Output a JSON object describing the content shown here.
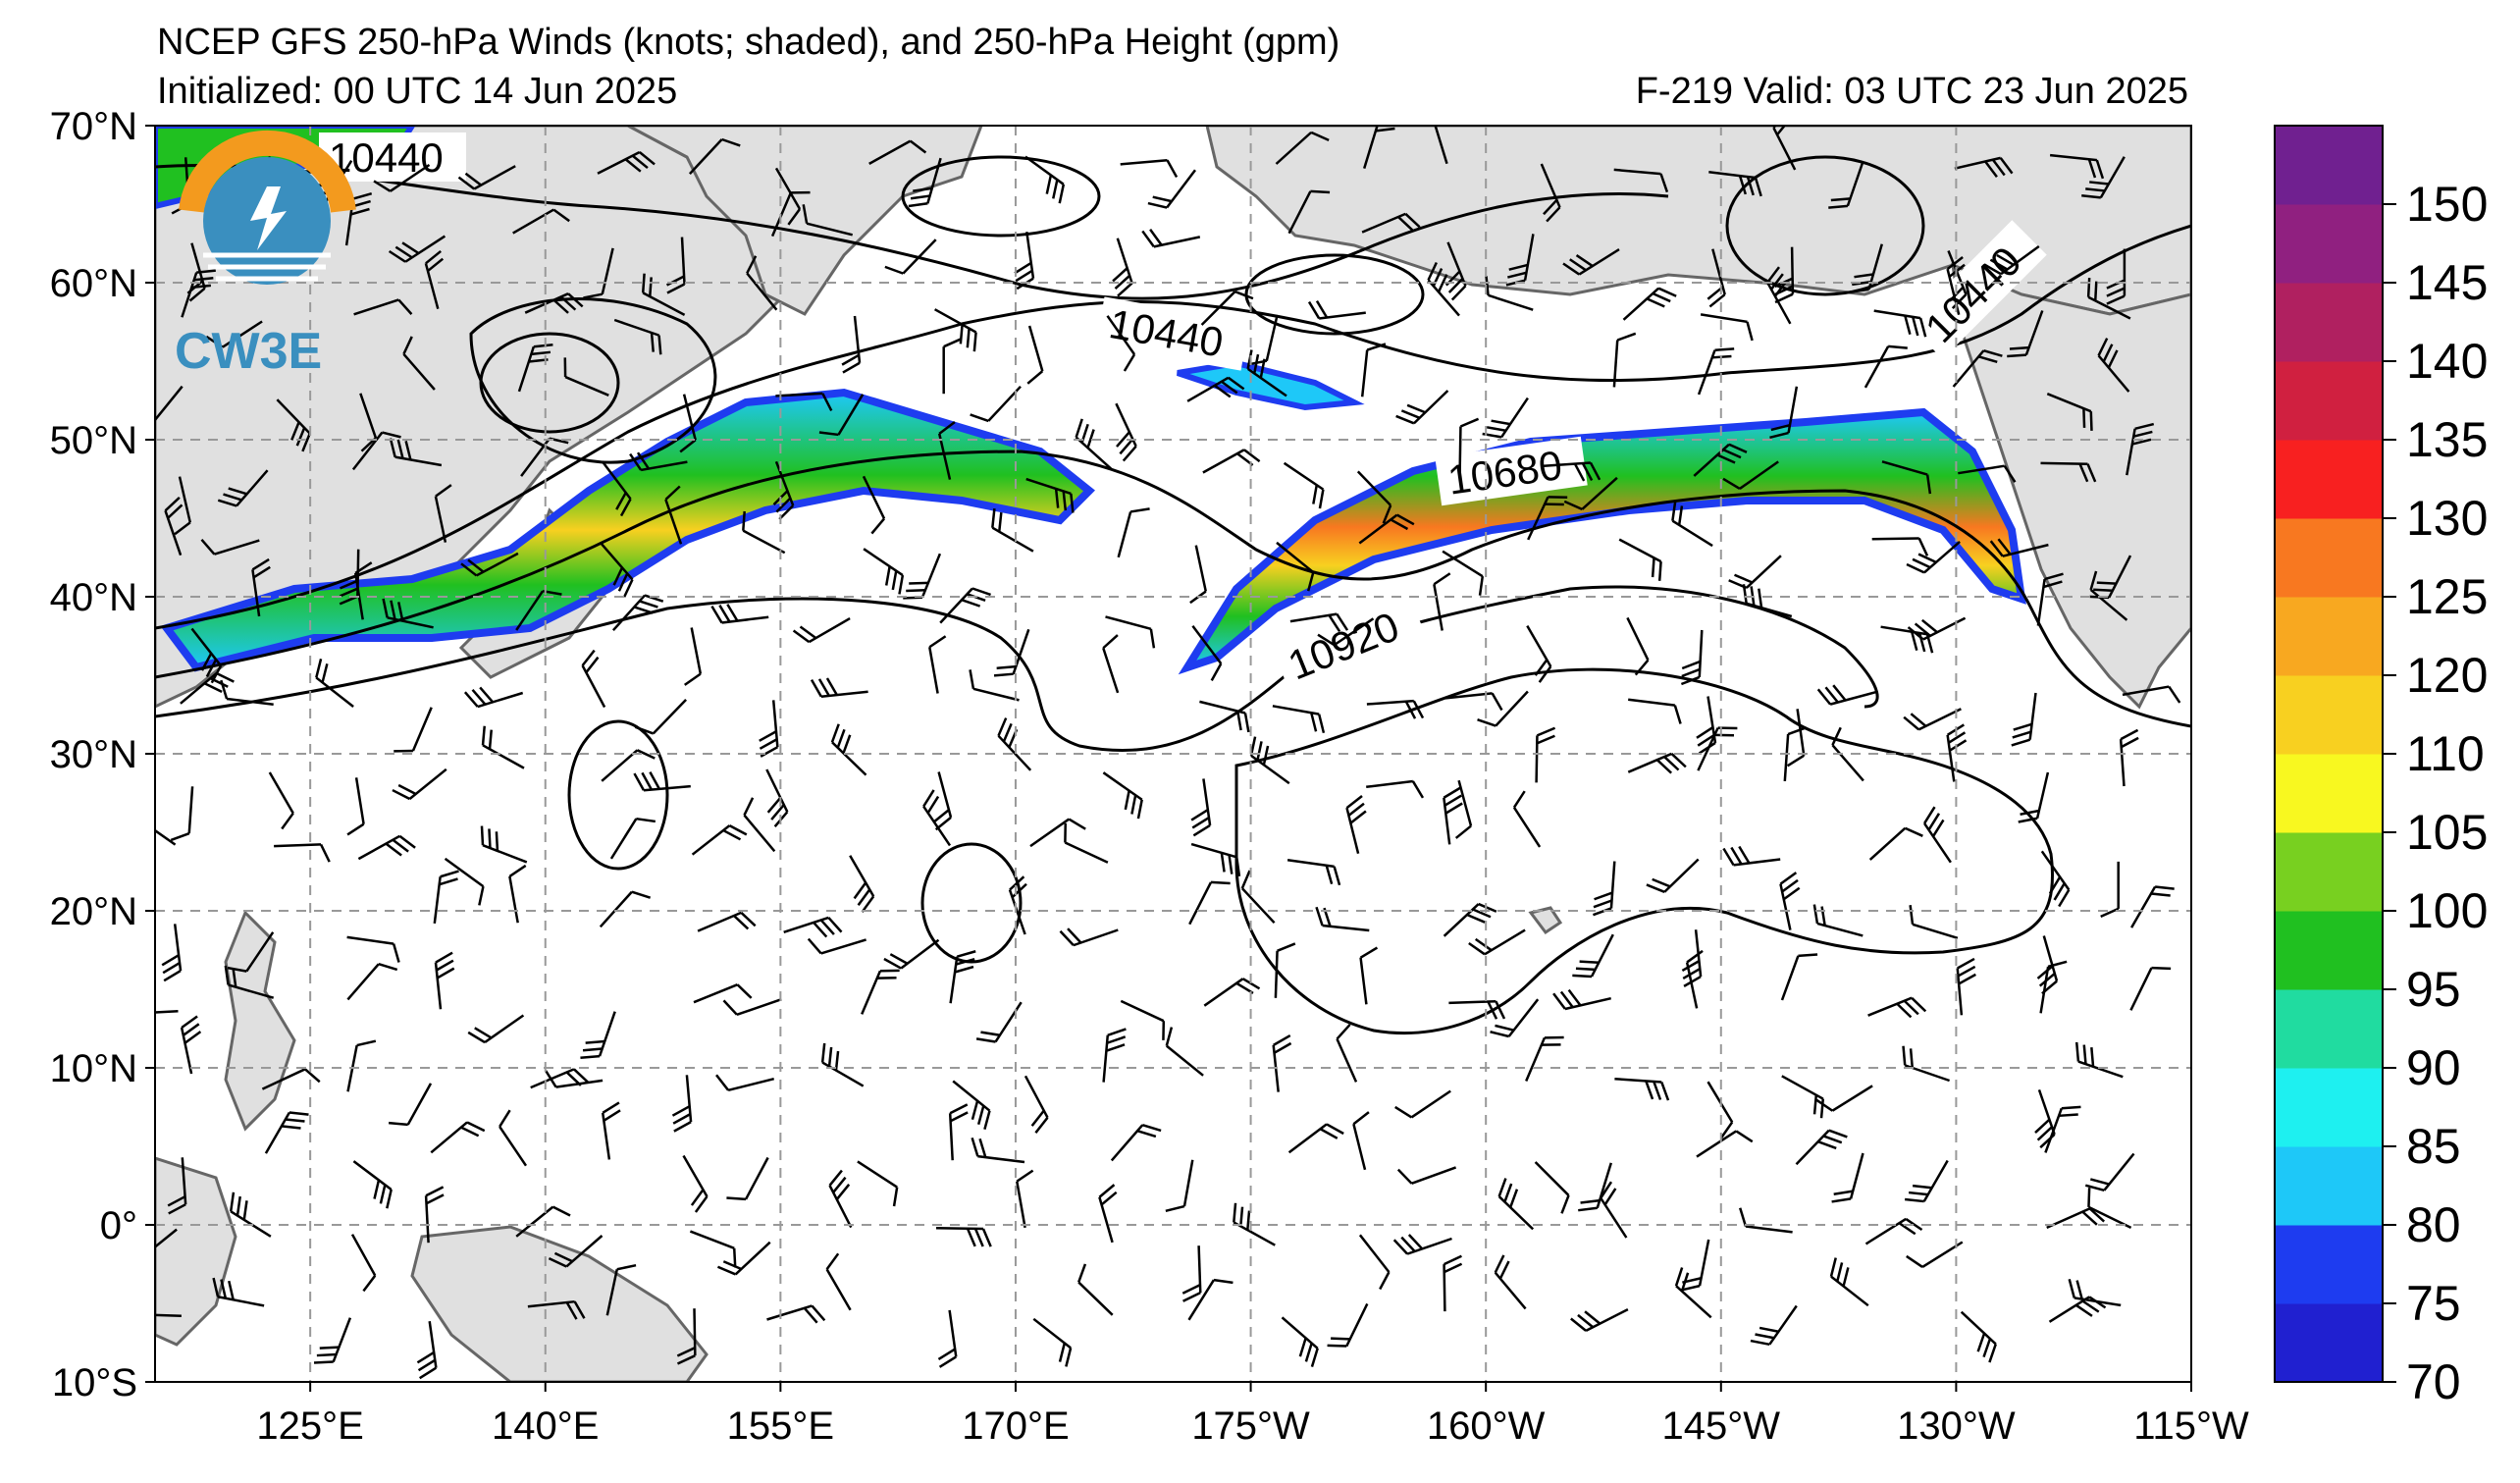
{
  "header": {
    "title_line": "NCEP GFS 250-hPa Winds (knots; shaded), and 250-hPa Height (gpm)",
    "init_line": "Initialized: 00 UTC 14 Jun 2025",
    "valid_line": "F-219  Valid: 03 UTC 23 Jun 2025"
  },
  "logo": {
    "text": "CW3E",
    "icon": "cw3e-logo-icon"
  },
  "map": {
    "lat_labels": [
      "70°N",
      "60°N",
      "50°N",
      "40°N",
      "30°N",
      "20°N",
      "10°N",
      "0°",
      "10°S"
    ],
    "lon_labels": [
      "125°E",
      "140°E",
      "155°E",
      "170°E",
      "175°W",
      "160°W",
      "145°W",
      "130°W",
      "115°W"
    ],
    "gridlines": true,
    "land_color": "#e0e0e0",
    "ocean_color": "#ffffff",
    "contour_labels": [
      "10440",
      "10440",
      "10440",
      "10680",
      "10920"
    ]
  },
  "colorbar": {
    "ticks": [
      "70",
      "75",
      "80",
      "85",
      "90",
      "95",
      "100",
      "105",
      "110",
      "120",
      "125",
      "130",
      "135",
      "140",
      "145",
      "150"
    ],
    "colors": [
      "#2020d0",
      "#1e3cf0",
      "#1ec8f8",
      "#1ef0f0",
      "#20dca0",
      "#20c020",
      "#78d020",
      "#f8f820",
      "#f8d020",
      "#f8a820",
      "#f87820",
      "#f82020",
      "#d02040",
      "#b02060",
      "#902080",
      "#702090"
    ]
  }
}
